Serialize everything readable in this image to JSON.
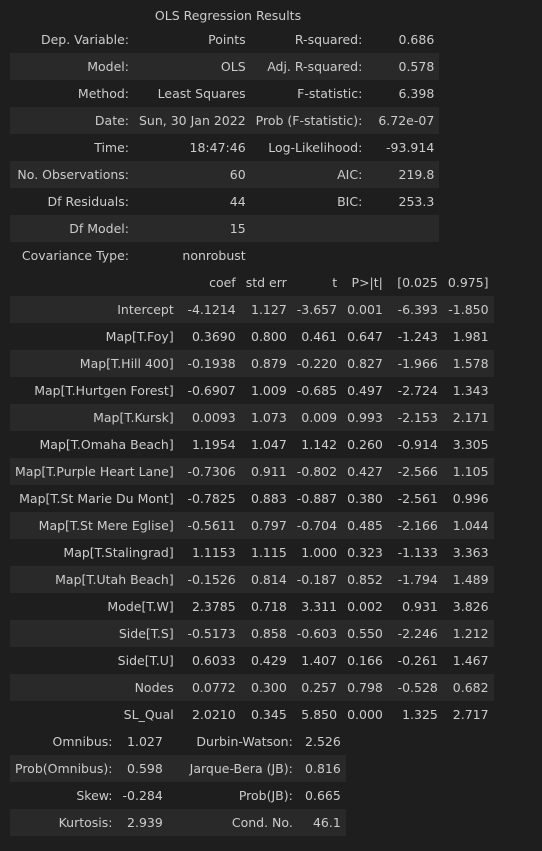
{
  "caption": "OLS Regression Results",
  "summary": [
    [
      "Dep. Variable:",
      "Points",
      "R-squared:",
      "0.686"
    ],
    [
      "Model:",
      "OLS",
      "Adj. R-squared:",
      "0.578"
    ],
    [
      "Method:",
      "Least Squares",
      "F-statistic:",
      "6.398"
    ],
    [
      "Date:",
      "Sun, 30 Jan 2022",
      "Prob (F-statistic):",
      "6.72e-07"
    ],
    [
      "Time:",
      "18:47:46",
      "Log-Likelihood:",
      "-93.914"
    ],
    [
      "No. Observations:",
      "60",
      "AIC:",
      "219.8"
    ],
    [
      "Df Residuals:",
      "44",
      "BIC:",
      "253.3"
    ],
    [
      "Df Model:",
      "15",
      "",
      ""
    ],
    [
      "Covariance Type:",
      "nonrobust",
      "",
      ""
    ]
  ],
  "coef_header": [
    "",
    "coef",
    "std err",
    "t",
    "P>|t|",
    "[0.025",
    "0.975]"
  ],
  "coefficients": [
    [
      "Intercept",
      "-4.1214",
      "1.127",
      "-3.657",
      "0.001",
      "-6.393",
      "-1.850"
    ],
    [
      "Map[T.Foy]",
      "0.3690",
      "0.800",
      "0.461",
      "0.647",
      "-1.243",
      "1.981"
    ],
    [
      "Map[T.Hill 400]",
      "-0.1938",
      "0.879",
      "-0.220",
      "0.827",
      "-1.966",
      "1.578"
    ],
    [
      "Map[T.Hurtgen Forest]",
      "-0.6907",
      "1.009",
      "-0.685",
      "0.497",
      "-2.724",
      "1.343"
    ],
    [
      "Map[T.Kursk]",
      "0.0093",
      "1.073",
      "0.009",
      "0.993",
      "-2.153",
      "2.171"
    ],
    [
      "Map[T.Omaha Beach]",
      "1.1954",
      "1.047",
      "1.142",
      "0.260",
      "-0.914",
      "3.305"
    ],
    [
      "Map[T.Purple Heart Lane]",
      "-0.7306",
      "0.911",
      "-0.802",
      "0.427",
      "-2.566",
      "1.105"
    ],
    [
      "Map[T.St Marie Du Mont]",
      "-0.7825",
      "0.883",
      "-0.887",
      "0.380",
      "-2.561",
      "0.996"
    ],
    [
      "Map[T.St Mere Eglise]",
      "-0.5611",
      "0.797",
      "-0.704",
      "0.485",
      "-2.166",
      "1.044"
    ],
    [
      "Map[T.Stalingrad]",
      "1.1153",
      "1.115",
      "1.000",
      "0.323",
      "-1.133",
      "3.363"
    ],
    [
      "Map[T.Utah Beach]",
      "-0.1526",
      "0.814",
      "-0.187",
      "0.852",
      "-1.794",
      "1.489"
    ],
    [
      "Mode[T.W]",
      "2.3785",
      "0.718",
      "3.311",
      "0.002",
      "0.931",
      "3.826"
    ],
    [
      "Side[T.S]",
      "-0.5173",
      "0.858",
      "-0.603",
      "0.550",
      "-2.246",
      "1.212"
    ],
    [
      "Side[T.U]",
      "0.6033",
      "0.429",
      "1.407",
      "0.166",
      "-0.261",
      "1.467"
    ],
    [
      "Nodes",
      "0.0772",
      "0.300",
      "0.257",
      "0.798",
      "-0.528",
      "0.682"
    ],
    [
      "SL_Qual",
      "2.0210",
      "0.345",
      "5.850",
      "0.000",
      "1.325",
      "2.717"
    ]
  ],
  "diagnostics": [
    [
      "Omnibus:",
      "1.027",
      "Durbin-Watson:",
      "2.526"
    ],
    [
      "Prob(Omnibus):",
      "0.598",
      "Jarque-Bera (JB):",
      "0.816"
    ],
    [
      "Skew:",
      "-0.284",
      "Prob(JB):",
      "0.665"
    ],
    [
      "Kurtosis:",
      "2.939",
      "Cond. No.",
      "46.1"
    ]
  ]
}
